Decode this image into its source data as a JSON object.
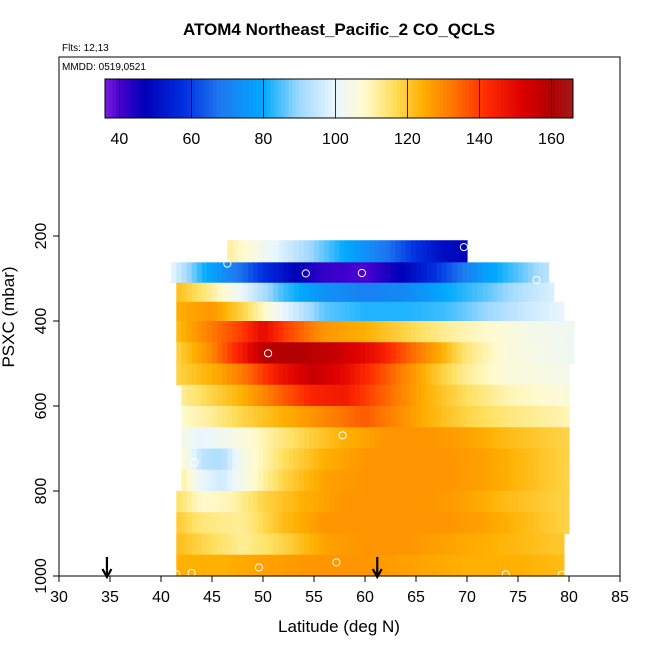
{
  "chart_data": {
    "type": "heatmap",
    "title": "ATOM4 Northeast_Pacific_2 CO_QCLS",
    "annotations": [
      "Flts: 12,13",
      "MMDD: 0519,0521"
    ],
    "xlabel": "Latitude (deg N)",
    "ylabel": "PSXC (mbar)",
    "xlim": [
      30,
      85
    ],
    "ylim": [
      1000,
      0
    ],
    "x_ticks": [
      30,
      35,
      40,
      45,
      50,
      55,
      60,
      65,
      70,
      75,
      80,
      85
    ],
    "y_ticks": [
      200,
      400,
      600,
      800,
      1000
    ],
    "colorbar": {
      "range": [
        36,
        166
      ],
      "ticks": [
        40,
        60,
        80,
        100,
        120,
        140,
        160
      ],
      "color_stops": [
        {
          "v": 36,
          "c": "#7a1fe0"
        },
        {
          "v": 40,
          "c": "#4a00d0"
        },
        {
          "v": 47,
          "c": "#0000b8"
        },
        {
          "v": 58,
          "c": "#0030e0"
        },
        {
          "v": 68,
          "c": "#1e78f0"
        },
        {
          "v": 80,
          "c": "#00aaff"
        },
        {
          "v": 90,
          "c": "#9fd8ff"
        },
        {
          "v": 100,
          "c": "#eaf6ff"
        },
        {
          "v": 108,
          "c": "#fffbd0"
        },
        {
          "v": 116,
          "c": "#ffe060"
        },
        {
          "v": 124,
          "c": "#ffb000"
        },
        {
          "v": 132,
          "c": "#ff7a00"
        },
        {
          "v": 142,
          "c": "#ff2a00"
        },
        {
          "v": 152,
          "c": "#dd0000"
        },
        {
          "v": 160,
          "c": "#b00000"
        },
        {
          "v": 166,
          "c": "#a51a1a"
        }
      ]
    },
    "rows": [
      {
        "p_top": 210,
        "p_bot": 262,
        "lat_min": 46.5,
        "lat_max": 70.0,
        "values": [
          [
            46.5,
            112
          ],
          [
            50,
            103
          ],
          [
            54,
            92
          ],
          [
            58,
            80
          ],
          [
            62,
            68
          ],
          [
            65,
            58
          ],
          [
            67.5,
            50
          ],
          [
            70,
            48
          ]
        ]
      },
      {
        "p_top": 262,
        "p_bot": 310,
        "lat_min": 41.0,
        "lat_max": 78.0,
        "values": [
          [
            41,
            100
          ],
          [
            44,
            82
          ],
          [
            47,
            70
          ],
          [
            50,
            58
          ],
          [
            53,
            48
          ],
          [
            56,
            42
          ],
          [
            60,
            40
          ],
          [
            64,
            48
          ],
          [
            68,
            62
          ],
          [
            72,
            78
          ],
          [
            76,
            88
          ],
          [
            78,
            94
          ]
        ]
      },
      {
        "p_top": 310,
        "p_bot": 355,
        "lat_min": 41.5,
        "lat_max": 78.5,
        "values": [
          [
            41.5,
            122
          ],
          [
            45,
            112
          ],
          [
            48,
            100
          ],
          [
            52,
            84
          ],
          [
            56,
            74
          ],
          [
            60,
            70
          ],
          [
            64,
            72
          ],
          [
            68,
            80
          ],
          [
            72,
            86
          ],
          [
            76,
            94
          ],
          [
            78.5,
            98
          ]
        ]
      },
      {
        "p_top": 355,
        "p_bot": 400,
        "lat_min": 41.5,
        "lat_max": 79.5,
        "values": [
          [
            41.5,
            124
          ],
          [
            45,
            128
          ],
          [
            48,
            118
          ],
          [
            52,
            100
          ],
          [
            56,
            86
          ],
          [
            60,
            82
          ],
          [
            64,
            82
          ],
          [
            68,
            84
          ],
          [
            72,
            90
          ],
          [
            76,
            96
          ],
          [
            79.5,
            100
          ]
        ]
      },
      {
        "p_top": 400,
        "p_bot": 450,
        "lat_min": 41.5,
        "lat_max": 80.5,
        "values": [
          [
            41.5,
            122
          ],
          [
            45,
            132
          ],
          [
            48,
            140
          ],
          [
            50,
            150
          ],
          [
            52,
            140
          ],
          [
            56,
            128
          ],
          [
            60,
            124
          ],
          [
            64,
            118
          ],
          [
            68,
            112
          ],
          [
            72,
            108
          ],
          [
            76,
            104
          ],
          [
            80.5,
            102
          ]
        ]
      },
      {
        "p_top": 450,
        "p_bot": 500,
        "lat_min": 41.5,
        "lat_max": 80.5,
        "values": [
          [
            41.5,
            118
          ],
          [
            45,
            130
          ],
          [
            48,
            146
          ],
          [
            50,
            158
          ],
          [
            53,
            160
          ],
          [
            57,
            156
          ],
          [
            61,
            148
          ],
          [
            64,
            136
          ],
          [
            67,
            126
          ],
          [
            70,
            114
          ],
          [
            74,
            106
          ],
          [
            80.5,
            102
          ]
        ]
      },
      {
        "p_top": 500,
        "p_bot": 550,
        "lat_min": 41.5,
        "lat_max": 80.0,
        "values": [
          [
            41.5,
            118
          ],
          [
            45,
            124
          ],
          [
            48,
            132
          ],
          [
            52,
            148
          ],
          [
            55,
            156
          ],
          [
            58,
            150
          ],
          [
            61,
            140
          ],
          [
            64,
            130
          ],
          [
            67,
            120
          ],
          [
            70,
            112
          ],
          [
            74,
            106
          ],
          [
            80,
            104
          ]
        ]
      },
      {
        "p_top": 550,
        "p_bot": 600,
        "lat_min": 42.0,
        "lat_max": 80.0,
        "values": [
          [
            42,
            112
          ],
          [
            45,
            118
          ],
          [
            48,
            124
          ],
          [
            52,
            136
          ],
          [
            55,
            144
          ],
          [
            58,
            146
          ],
          [
            60,
            140
          ],
          [
            63,
            132
          ],
          [
            66,
            124
          ],
          [
            70,
            116
          ],
          [
            74,
            110
          ],
          [
            80,
            106
          ]
        ]
      },
      {
        "p_top": 600,
        "p_bot": 650,
        "lat_min": 42.0,
        "lat_max": 80.0,
        "values": [
          [
            42,
            108
          ],
          [
            45,
            112
          ],
          [
            48,
            118
          ],
          [
            52,
            124
          ],
          [
            56,
            130
          ],
          [
            60,
            136
          ],
          [
            63,
            130
          ],
          [
            66,
            124
          ],
          [
            70,
            118
          ],
          [
            74,
            114
          ],
          [
            80,
            110
          ]
        ]
      },
      {
        "p_top": 650,
        "p_bot": 700,
        "lat_min": 42.0,
        "lat_max": 80.0,
        "values": [
          [
            42,
            104
          ],
          [
            44,
            100
          ],
          [
            47,
            104
          ],
          [
            50,
            110
          ],
          [
            54,
            118
          ],
          [
            58,
            124
          ],
          [
            62,
            128
          ],
          [
            66,
            128
          ],
          [
            70,
            126
          ],
          [
            74,
            122
          ],
          [
            80,
            118
          ]
        ]
      },
      {
        "p_top": 700,
        "p_bot": 750,
        "lat_min": 42.0,
        "lat_max": 80.0,
        "values": [
          [
            42,
            108
          ],
          [
            44,
            94
          ],
          [
            46,
            92
          ],
          [
            48,
            104
          ],
          [
            52,
            116
          ],
          [
            56,
            124
          ],
          [
            60,
            128
          ],
          [
            64,
            128
          ],
          [
            68,
            128
          ],
          [
            72,
            126
          ],
          [
            76,
            122
          ],
          [
            80,
            118
          ]
        ]
      },
      {
        "p_top": 750,
        "p_bot": 800,
        "lat_min": 42.0,
        "lat_max": 80.0,
        "values": [
          [
            42,
            112
          ],
          [
            44,
            100
          ],
          [
            46,
            96
          ],
          [
            48,
            104
          ],
          [
            52,
            118
          ],
          [
            56,
            126
          ],
          [
            60,
            128
          ],
          [
            64,
            128
          ],
          [
            68,
            128
          ],
          [
            72,
            126
          ],
          [
            76,
            122
          ],
          [
            80,
            118
          ]
        ]
      },
      {
        "p_top": 800,
        "p_bot": 850,
        "lat_min": 41.5,
        "lat_max": 80.0,
        "values": [
          [
            41.5,
            116
          ],
          [
            44,
            108
          ],
          [
            47,
            110
          ],
          [
            50,
            118
          ],
          [
            54,
            124
          ],
          [
            58,
            128
          ],
          [
            62,
            128
          ],
          [
            66,
            128
          ],
          [
            70,
            126
          ],
          [
            74,
            122
          ],
          [
            80,
            118
          ]
        ]
      },
      {
        "p_top": 850,
        "p_bot": 900,
        "lat_min": 41.5,
        "lat_max": 80.0,
        "values": [
          [
            41.5,
            120
          ],
          [
            44,
            114
          ],
          [
            48,
            112
          ],
          [
            52,
            122
          ],
          [
            56,
            128
          ],
          [
            60,
            128
          ],
          [
            64,
            128
          ],
          [
            68,
            128
          ],
          [
            72,
            126
          ],
          [
            76,
            122
          ],
          [
            80,
            118
          ]
        ]
      },
      {
        "p_top": 900,
        "p_bot": 950,
        "lat_min": 41.5,
        "lat_max": 79.5,
        "values": [
          [
            41.5,
            122
          ],
          [
            44,
            118
          ],
          [
            48,
            112
          ],
          [
            52,
            118
          ],
          [
            56,
            126
          ],
          [
            60,
            128
          ],
          [
            64,
            128
          ],
          [
            68,
            126
          ],
          [
            72,
            124
          ],
          [
            76,
            122
          ],
          [
            79.5,
            120
          ]
        ]
      },
      {
        "p_top": 950,
        "p_bot": 1000,
        "lat_min": 41.5,
        "lat_max": 79.5,
        "values": [
          [
            41.5,
            124
          ],
          [
            46,
            124
          ],
          [
            50,
            126
          ],
          [
            55,
            128
          ],
          [
            60,
            128
          ],
          [
            65,
            126
          ],
          [
            70,
            124
          ],
          [
            75,
            124
          ],
          [
            79.5,
            122
          ]
        ]
      }
    ],
    "sample_points": [
      {
        "lat": 69.7,
        "p": 226
      },
      {
        "lat": 46.5,
        "p": 265
      },
      {
        "lat": 54.2,
        "p": 288
      },
      {
        "lat": 59.7,
        "p": 287
      },
      {
        "lat": 76.8,
        "p": 303
      },
      {
        "lat": 50.5,
        "p": 476
      },
      {
        "lat": 57.8,
        "p": 669
      },
      {
        "lat": 43.3,
        "p": 733
      },
      {
        "lat": 57.2,
        "p": 968
      },
      {
        "lat": 49.6,
        "p": 980
      },
      {
        "lat": 41.5,
        "p": 996
      },
      {
        "lat": 43.0,
        "p": 993
      },
      {
        "lat": 73.8,
        "p": 996
      },
      {
        "lat": 79.3,
        "p": 997
      }
    ],
    "markers": [
      {
        "type": "arrow-down",
        "lat": 34.7
      },
      {
        "type": "arrow-down",
        "lat": 61.2
      }
    ]
  }
}
